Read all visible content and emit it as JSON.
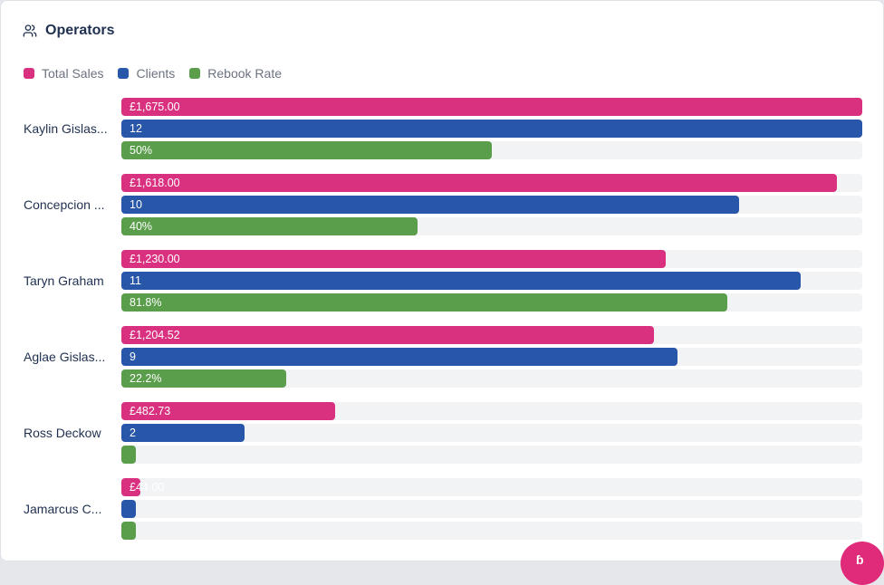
{
  "header": {
    "title": "Operators",
    "icon": "users-icon"
  },
  "legend": [
    {
      "label": "Total Sales",
      "color": "#d9317f"
    },
    {
      "label": "Clients",
      "color": "#2856a8"
    },
    {
      "label": "Rebook Rate",
      "color": "#5a9e4b"
    }
  ],
  "chart_data": {
    "type": "bar",
    "orientation": "horizontal",
    "categories": [
      "Kaylin Gislas...",
      "Concepcion ...",
      "Taryn Graham",
      "Aglae Gislas...",
      "Ross Deckow",
      "Jamarcus C..."
    ],
    "series": [
      {
        "name": "Total Sales",
        "values": [
          1675.0,
          1618.0,
          1230.0,
          1204.52,
          482.73,
          44.0
        ],
        "labels": [
          "£1,675.00",
          "£1,618.00",
          "£1,230.00",
          "£1,204.52",
          "£482.73",
          "£44.00"
        ],
        "max": 1675.0
      },
      {
        "name": "Clients",
        "values": [
          12,
          10,
          11,
          9,
          2,
          0
        ],
        "labels": [
          "12",
          "10",
          "11",
          "9",
          "2",
          ""
        ],
        "max": 12
      },
      {
        "name": "Rebook Rate",
        "values": [
          50,
          40,
          81.8,
          22.2,
          0,
          0
        ],
        "labels": [
          "50%",
          "40%",
          "81.8%",
          "22.2%",
          "",
          ""
        ],
        "max": 100
      }
    ],
    "grid": false,
    "legend_position": "top-left"
  },
  "fab": {
    "icon": "assistant-icon",
    "glyph": "ɓ"
  }
}
